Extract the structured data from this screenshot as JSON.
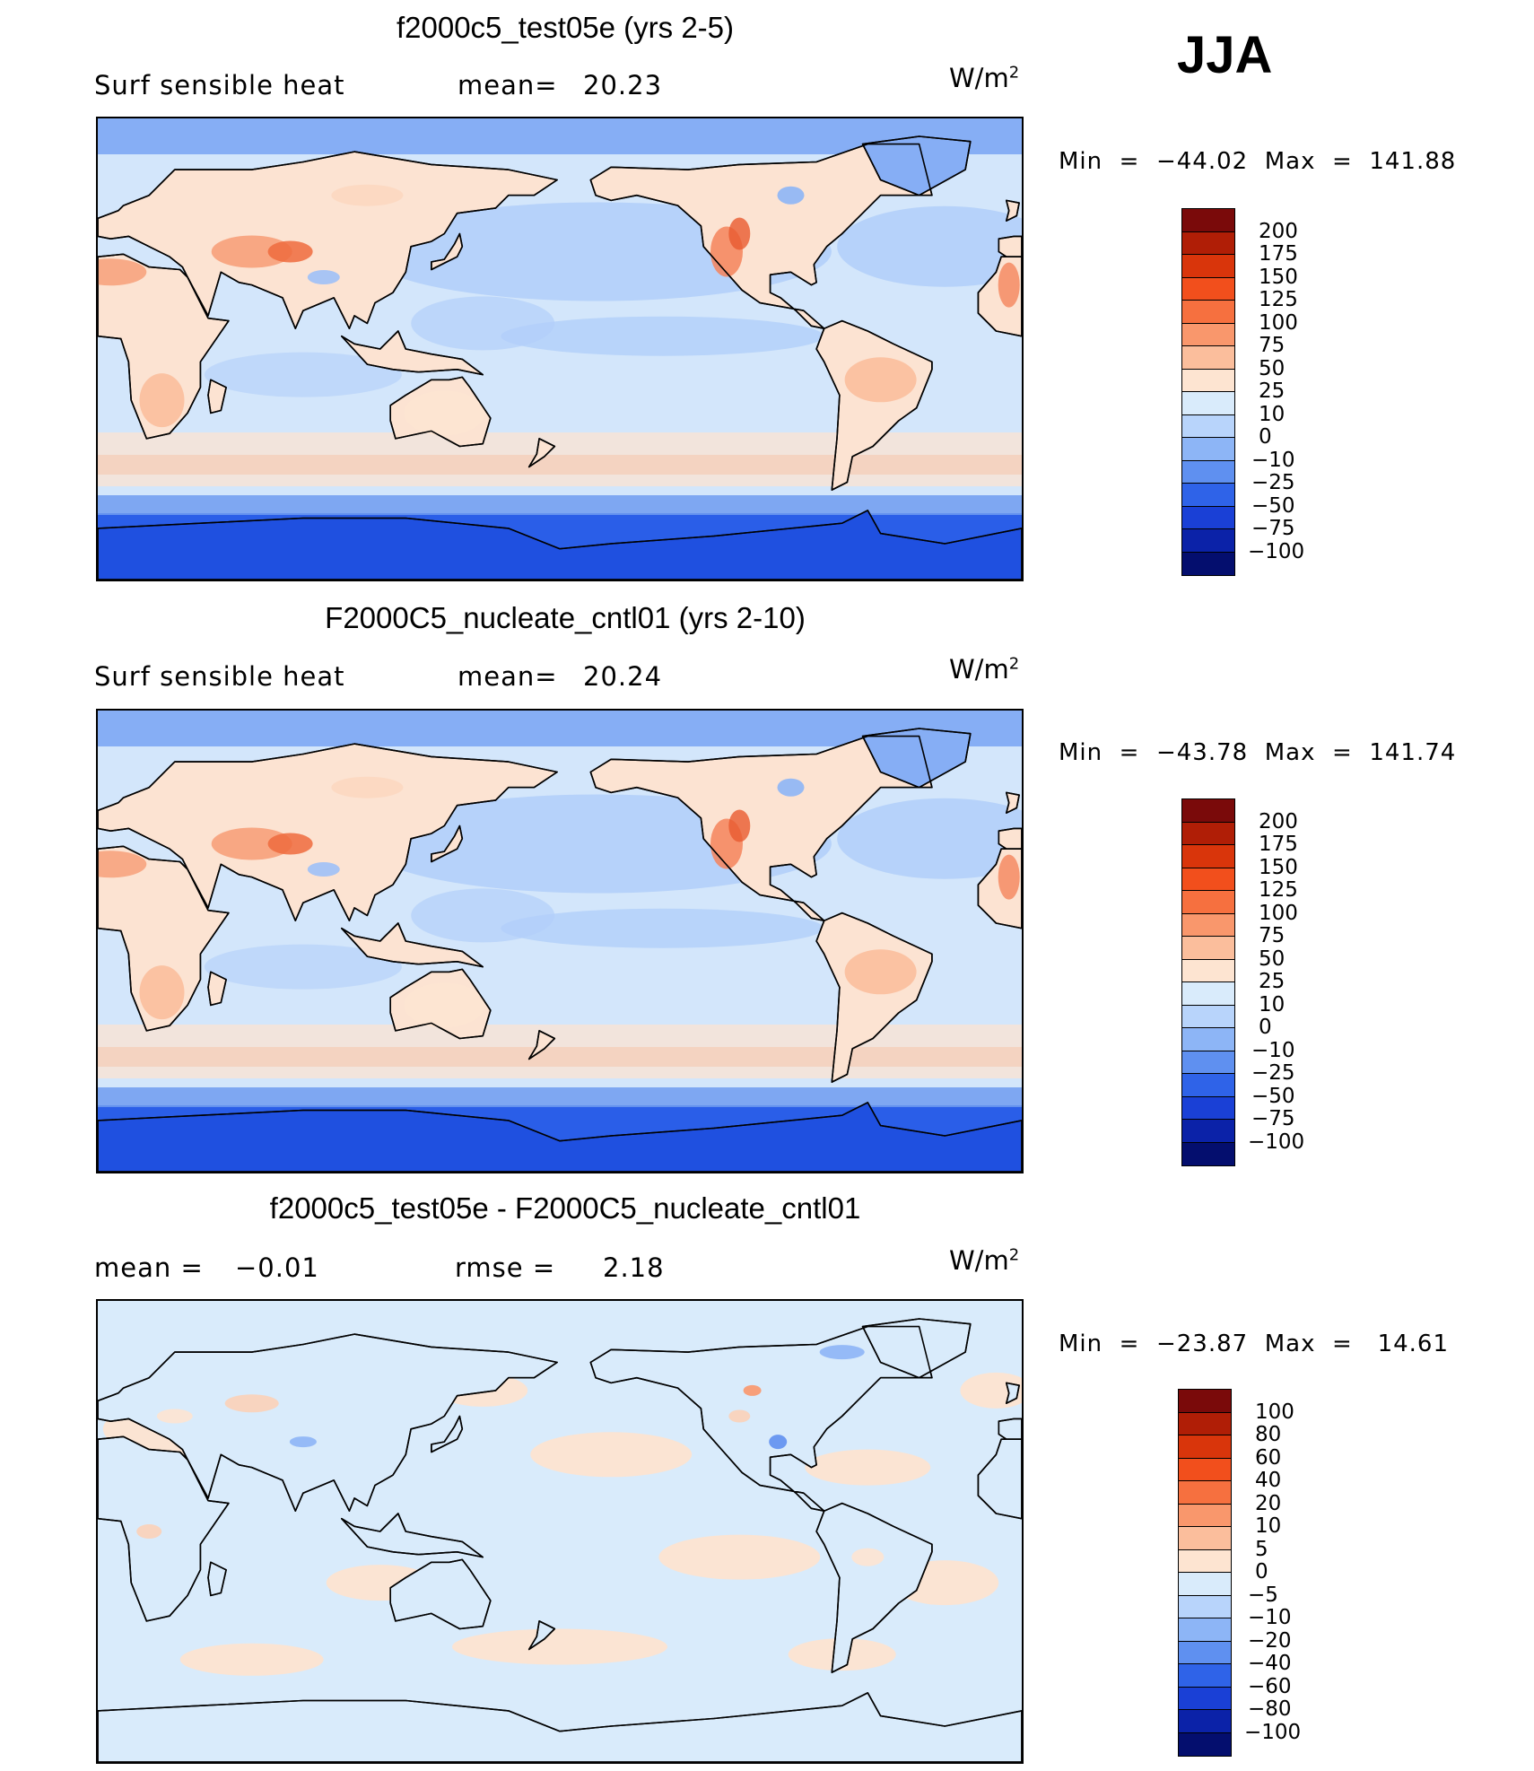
{
  "season": "JJA",
  "units": "W/m",
  "units_exp": "2",
  "colors": {
    "land_warm": "#fce3d2",
    "ocean_cool": "#d3e6fb",
    "ocean_mid": "#b2cffa",
    "polar": "#2a5ee8",
    "arctic": "#86aef5",
    "hot": "#f4845c",
    "hotter": "#ef6b3e"
  },
  "panels": [
    {
      "title": "f2000c5_test05e (yrs 2-5)",
      "left_label": "Surf  sensible  heat",
      "center_label": "mean=",
      "center_value": "20.23",
      "minmax_text": "Min  =  −44.02  Max  =  141.88",
      "variant": "a"
    },
    {
      "title": "F2000C5_nucleate_cntl01 (yrs 2-10)",
      "left_label": "Surf  sensible  heat",
      "center_label": "mean=",
      "center_value": "20.24",
      "minmax_text": "Min  =  −43.78  Max  =  141.74",
      "variant": "b"
    },
    {
      "title": "f2000c5_test05e - F2000C5_nucleate_cntl01",
      "left_label": "mean  =",
      "left_value": "−0.01",
      "center_label": "rmse  =",
      "center_value": "2.18",
      "minmax_text": "Min  =  −23.87  Max  =   14.61",
      "variant": "diff"
    }
  ],
  "colorbars": {
    "abs": {
      "labels": [
        "200",
        "175",
        "150",
        "125",
        "100",
        "75",
        "50",
        "25",
        "10",
        "0",
        "−10",
        "−25",
        "−50",
        "−75",
        "−100"
      ],
      "colors": [
        "#7a0a0a",
        "#b01e06",
        "#d9350b",
        "#f24f1c",
        "#f6703f",
        "#f9976c",
        "#fbbe9c",
        "#fde4d1",
        "#d9ebfb",
        "#b8d4fb",
        "#8db5f6",
        "#5f90f0",
        "#2f63e8",
        "#1a40d6",
        "#0b22a8",
        "#040e6e"
      ]
    },
    "diff": {
      "labels": [
        "100",
        "80",
        "60",
        "40",
        "20",
        "10",
        "5",
        "0",
        "−5",
        "−10",
        "−20",
        "−40",
        "−60",
        "−80",
        "−100"
      ],
      "colors": [
        "#7a0a0a",
        "#b01e06",
        "#d9350b",
        "#f24f1c",
        "#f6703f",
        "#f9976c",
        "#fbbe9c",
        "#fde4d1",
        "#d9ebfb",
        "#b8d4fb",
        "#8db5f6",
        "#5f90f0",
        "#2f63e8",
        "#1a40d6",
        "#0b22a8",
        "#040e6e"
      ]
    }
  },
  "chart_data": [
    {
      "type": "heatmap",
      "title": "f2000c5_test05e (yrs 2-5)",
      "variable": "Surf sensible heat",
      "season": "JJA",
      "units": "W/m2",
      "mean": 20.23,
      "min": -44.02,
      "max": 141.88,
      "levels": [
        -100,
        -75,
        -50,
        -25,
        -10,
        0,
        10,
        25,
        50,
        75,
        100,
        125,
        150,
        175,
        200
      ]
    },
    {
      "type": "heatmap",
      "title": "F2000C5_nucleate_cntl01 (yrs 2-10)",
      "variable": "Surf sensible heat",
      "season": "JJA",
      "units": "W/m2",
      "mean": 20.24,
      "min": -43.78,
      "max": 141.74,
      "levels": [
        -100,
        -75,
        -50,
        -25,
        -10,
        0,
        10,
        25,
        50,
        75,
        100,
        125,
        150,
        175,
        200
      ]
    },
    {
      "type": "heatmap",
      "title": "f2000c5_test05e - F2000C5_nucleate_cntl01",
      "units": "W/m2",
      "mean": -0.01,
      "rmse": 2.18,
      "min": -23.87,
      "max": 14.61,
      "levels": [
        -100,
        -80,
        -60,
        -40,
        -20,
        -10,
        -5,
        0,
        5,
        10,
        20,
        40,
        60,
        80,
        100
      ]
    }
  ]
}
